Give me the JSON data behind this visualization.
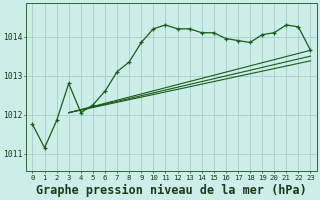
{
  "background_color": "#cceee8",
  "grid_color": "#aacccc",
  "line_color": "#1a5c1a",
  "title": "Graphe pression niveau de la mer (hPa)",
  "title_fontsize": 8.5,
  "ylim": [
    1010.55,
    1014.85
  ],
  "yticks": [
    1011,
    1012,
    1013,
    1014
  ],
  "xlim": [
    -0.5,
    23.5
  ],
  "xticks": [
    0,
    1,
    2,
    3,
    4,
    5,
    6,
    7,
    8,
    9,
    10,
    11,
    12,
    13,
    14,
    15,
    16,
    17,
    18,
    19,
    20,
    21,
    22,
    23
  ],
  "series1_x": [
    0,
    1,
    2,
    3,
    4,
    5,
    6,
    7,
    8,
    9,
    10,
    11,
    12,
    13,
    14,
    15,
    16,
    17,
    18,
    19,
    20,
    21,
    22,
    23
  ],
  "series1_y": [
    1011.75,
    1011.15,
    1011.85,
    1012.8,
    1012.05,
    1012.25,
    1012.6,
    1013.1,
    1013.35,
    1013.85,
    1014.2,
    1014.3,
    1014.2,
    1014.2,
    1014.1,
    1014.1,
    1013.95,
    1013.9,
    1013.85,
    1014.05,
    1014.1,
    1014.3,
    1014.25,
    1013.65
  ],
  "series2_x": [
    3,
    23
  ],
  "series2_y": [
    1012.05,
    1013.65
  ],
  "series3_x": [
    3,
    23
  ],
  "series3_y": [
    1012.05,
    1013.5
  ],
  "series4_x": [
    3,
    23
  ],
  "series4_y": [
    1012.05,
    1013.38
  ]
}
